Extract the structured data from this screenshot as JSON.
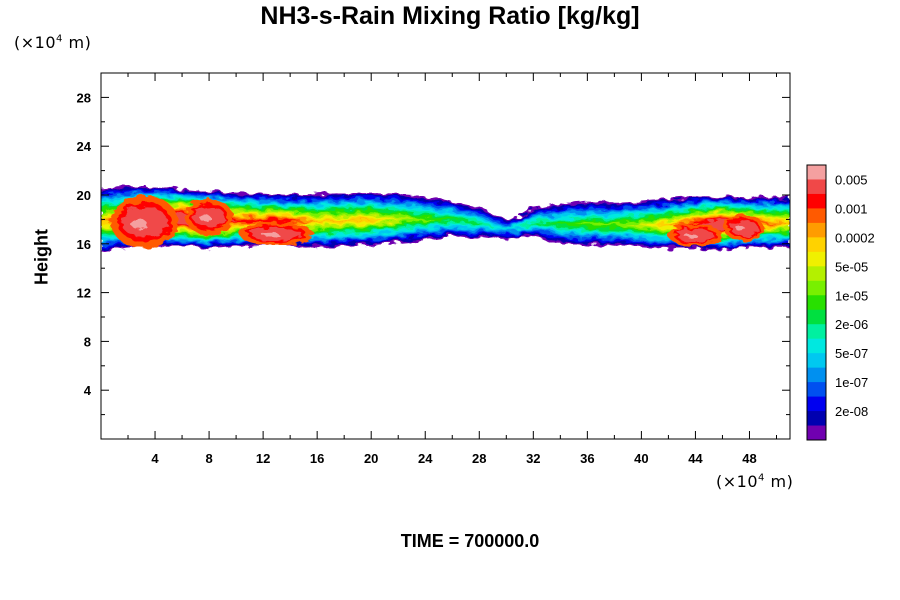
{
  "chart_data": {
    "type": "heatmap",
    "title": "NH3-s-Rain Mixing Ratio [kg/kg]",
    "xlabel": "",
    "ylabel": "Height",
    "x_unit_prefix": "(×10",
    "x_unit_exp": "4",
    "x_unit_suffix": " m)",
    "y_unit_prefix": "(×10",
    "y_unit_exp": "4",
    "y_unit_suffix": " m)",
    "xlim": [
      0,
      51
    ],
    "ylim": [
      0,
      30
    ],
    "x_ticks": [
      4,
      8,
      12,
      16,
      20,
      24,
      28,
      32,
      36,
      40,
      44,
      48
    ],
    "y_ticks": [
      4,
      8,
      12,
      16,
      20,
      24,
      28
    ],
    "x_tick_labels": [
      "4",
      "8",
      "12",
      "16",
      "20",
      "24",
      "28",
      "32",
      "36",
      "40",
      "44",
      "48"
    ],
    "y_tick_labels": [
      "4",
      "8",
      "12",
      "16",
      "20",
      "24",
      "28"
    ],
    "time_label": "TIME = 700000.0",
    "colorbar": {
      "colors": [
        "#f4a0a0",
        "#f04848",
        "#ff0000",
        "#ff5a00",
        "#ff9c00",
        "#ffd200",
        "#f0f000",
        "#b4f000",
        "#78f000",
        "#28e000",
        "#00e040",
        "#00f0a0",
        "#00e8e0",
        "#00c8f0",
        "#0090f0",
        "#0050f0",
        "#0000f0",
        "#0000b0",
        "#7000b0"
      ],
      "labels": [
        "0.005",
        "0.001",
        "0.0002",
        "5e-05",
        "1e-05",
        "2e-06",
        "5e-07",
        "1e-07",
        "2e-08"
      ]
    },
    "band_profile": {
      "x": [
        0,
        2,
        4,
        6,
        8,
        10,
        12,
        14,
        16,
        18,
        20,
        22,
        24,
        26,
        28,
        29,
        30,
        31,
        32,
        34,
        36,
        38,
        40,
        42,
        44,
        46,
        48,
        51
      ],
      "top": [
        20.8,
        21.0,
        21.0,
        20.8,
        20.6,
        20.5,
        20.4,
        20.3,
        20.4,
        20.5,
        20.5,
        20.4,
        20.2,
        19.8,
        19.3,
        18.8,
        18.3,
        18.5,
        19.2,
        19.6,
        19.8,
        19.7,
        19.8,
        20.0,
        20.2,
        20.2,
        20.1,
        20.2
      ],
      "bottom": [
        15.4,
        15.8,
        15.9,
        15.9,
        15.7,
        15.9,
        16.0,
        16.0,
        15.8,
        15.9,
        16.0,
        16.2,
        16.4,
        16.8,
        16.6,
        16.8,
        16.6,
        16.9,
        16.8,
        16.2,
        16.0,
        16.0,
        15.9,
        15.7,
        15.7,
        15.6,
        15.8,
        15.8
      ],
      "core_level": [
        3,
        2,
        1,
        1,
        1,
        2,
        2,
        2,
        3,
        3,
        3,
        4,
        5,
        6,
        7,
        9,
        10,
        9,
        7,
        6,
        5,
        5,
        4,
        3,
        2,
        1,
        2,
        3
      ]
    },
    "hotspots": [
      {
        "x": 3.2,
        "y": 17.8,
        "rx": 2.0,
        "ry": 1.6
      },
      {
        "x": 8.0,
        "y": 18.2,
        "rx": 1.4,
        "ry": 1.1
      },
      {
        "x": 13.0,
        "y": 16.8,
        "rx": 2.2,
        "ry": 0.7
      },
      {
        "x": 44.0,
        "y": 16.7,
        "rx": 1.6,
        "ry": 0.7
      },
      {
        "x": 47.6,
        "y": 17.3,
        "rx": 1.2,
        "ry": 0.8
      }
    ]
  }
}
